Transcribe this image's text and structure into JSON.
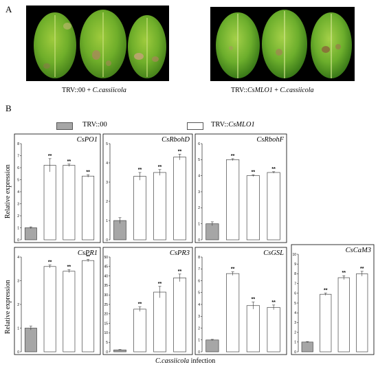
{
  "panel_a": {
    "label": "A",
    "photos": [
      {
        "caption_prefix": "TRV::00",
        "caption_plus": "+",
        "caption_pathogen": "C.cassiicola",
        "leaves": 3
      },
      {
        "caption_prefix": "TRV::",
        "caption_gene": "CsMLO1",
        "caption_plus": "+",
        "caption_pathogen": "C.cassiicola",
        "leaves": 3
      }
    ]
  },
  "panel_b": {
    "label": "B",
    "legend": [
      {
        "name": "TRV::00",
        "color": "#a6a6a6"
      },
      {
        "name_prefix": "TRV::",
        "name_gene": "CsMLO1",
        "color": "#ffffff"
      }
    ],
    "ylabel": "Relative expression",
    "xlabel_italic": "C.cassiicola",
    "xlabel_rest": " infection"
  },
  "chart_data": [
    {
      "type": "bar",
      "title": "CsPO1",
      "ylim": [
        0,
        8
      ],
      "ticks": [
        0,
        1,
        2,
        3,
        4,
        5,
        6,
        7,
        8
      ],
      "values": [
        1.0,
        6.2,
        6.2,
        5.3
      ],
      "errors": [
        0.08,
        0.55,
        0.1,
        0.1
      ],
      "labels": [
        "",
        "**",
        "**",
        "**"
      ]
    },
    {
      "type": "bar",
      "title": "CsRbohD",
      "ylim": [
        0,
        5
      ],
      "ticks": [
        0,
        1,
        2,
        3,
        4,
        5
      ],
      "values": [
        1.0,
        3.3,
        3.5,
        4.3
      ],
      "errors": [
        0.15,
        0.2,
        0.15,
        0.15
      ],
      "labels": [
        "",
        "**",
        "**",
        "**"
      ]
    },
    {
      "type": "bar",
      "title": "CsRbohF",
      "ylim": [
        0,
        6
      ],
      "ticks": [
        0,
        1,
        2,
        3,
        4,
        5,
        6
      ],
      "values": [
        1.0,
        5.0,
        4.0,
        4.2
      ],
      "errors": [
        0.12,
        0.06,
        0.05,
        0.05
      ],
      "labels": [
        "",
        "**",
        "**",
        "**"
      ]
    },
    {
      "type": "bar",
      "title": "CsPR1",
      "ylim": [
        0,
        4
      ],
      "ticks": [
        0,
        1,
        2,
        3,
        4
      ],
      "values": [
        1.0,
        3.6,
        3.4,
        3.85
      ],
      "errors": [
        0.08,
        0.06,
        0.06,
        0.05
      ],
      "labels": [
        "",
        "**",
        "**",
        "**"
      ]
    },
    {
      "type": "bar",
      "title": "CsPR3",
      "ylim": [
        0,
        50
      ],
      "ticks": [
        0,
        5,
        10,
        15,
        20,
        25,
        30,
        35,
        40,
        45,
        50
      ],
      "values": [
        1.0,
        22.5,
        31.5,
        39.0
      ],
      "errors": [
        0.2,
        1.2,
        3.0,
        2.0
      ],
      "labels": [
        "",
        "**",
        "**",
        "**"
      ]
    },
    {
      "type": "bar",
      "title": "CsGSL",
      "ylim": [
        0,
        8
      ],
      "ticks": [
        0,
        1,
        2,
        3,
        4,
        5,
        6,
        7,
        8
      ],
      "values": [
        1.0,
        6.6,
        3.9,
        3.75
      ],
      "errors": [
        0.05,
        0.15,
        0.3,
        0.2
      ],
      "labels": [
        "",
        "**",
        "**",
        "**"
      ]
    },
    {
      "type": "bar",
      "title": "CsCaM3",
      "ylim": [
        0,
        10
      ],
      "ticks": [
        0,
        1,
        2,
        3,
        4,
        5,
        6,
        7,
        8,
        9,
        10
      ],
      "values": [
        1.0,
        5.9,
        7.6,
        8.0
      ],
      "errors": [
        0.05,
        0.12,
        0.2,
        0.25
      ],
      "labels": [
        "",
        "**",
        "**",
        "**"
      ]
    }
  ]
}
